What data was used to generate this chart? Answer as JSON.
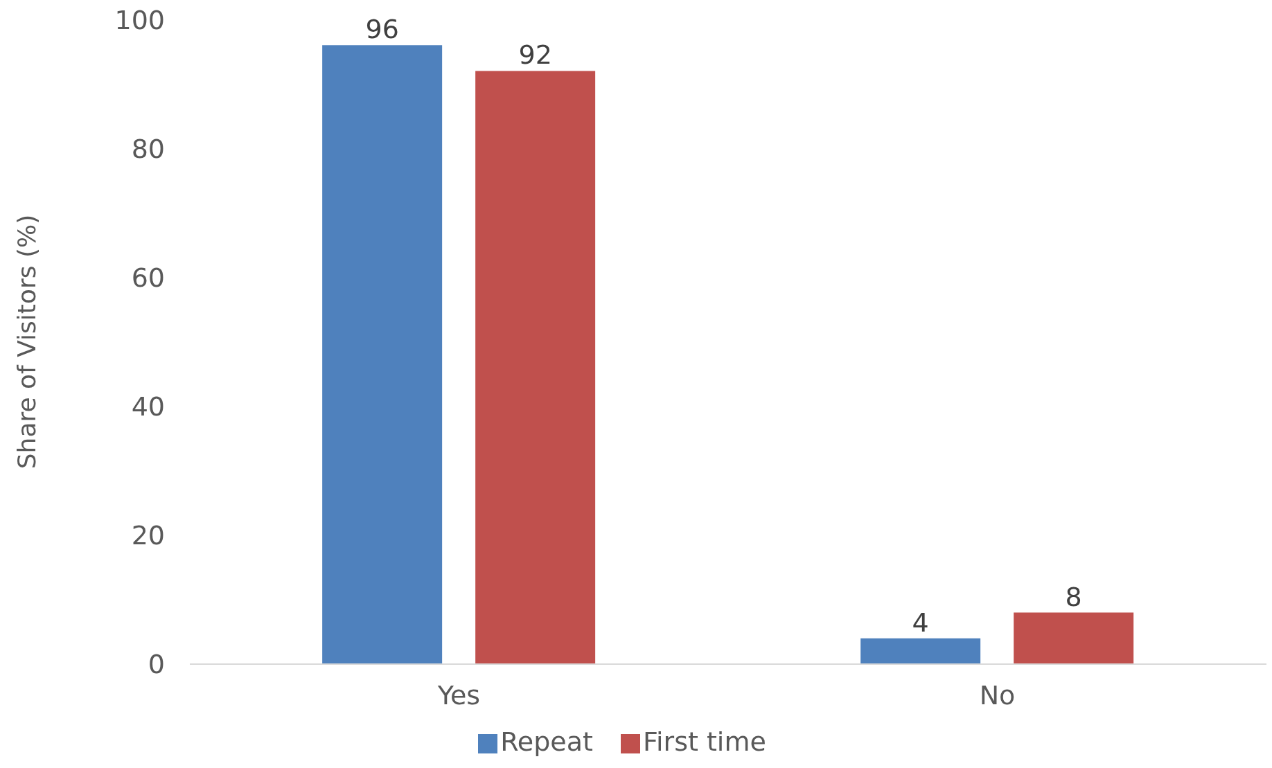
{
  "chart_data": {
    "type": "bar",
    "ylabel": "Share of Visitors (%)",
    "categories": [
      "Yes",
      "No"
    ],
    "series": [
      {
        "name": "Repeat",
        "color": "#4f81bd",
        "values": [
          96,
          4
        ]
      },
      {
        "name": "First time",
        "color": "#c0504d",
        "values": [
          92,
          8
        ]
      }
    ],
    "ylim": [
      0,
      100
    ],
    "yticks": [
      0,
      20,
      40,
      60,
      80,
      100
    ],
    "grid": false,
    "legend": "bottom",
    "data_labels": true
  }
}
